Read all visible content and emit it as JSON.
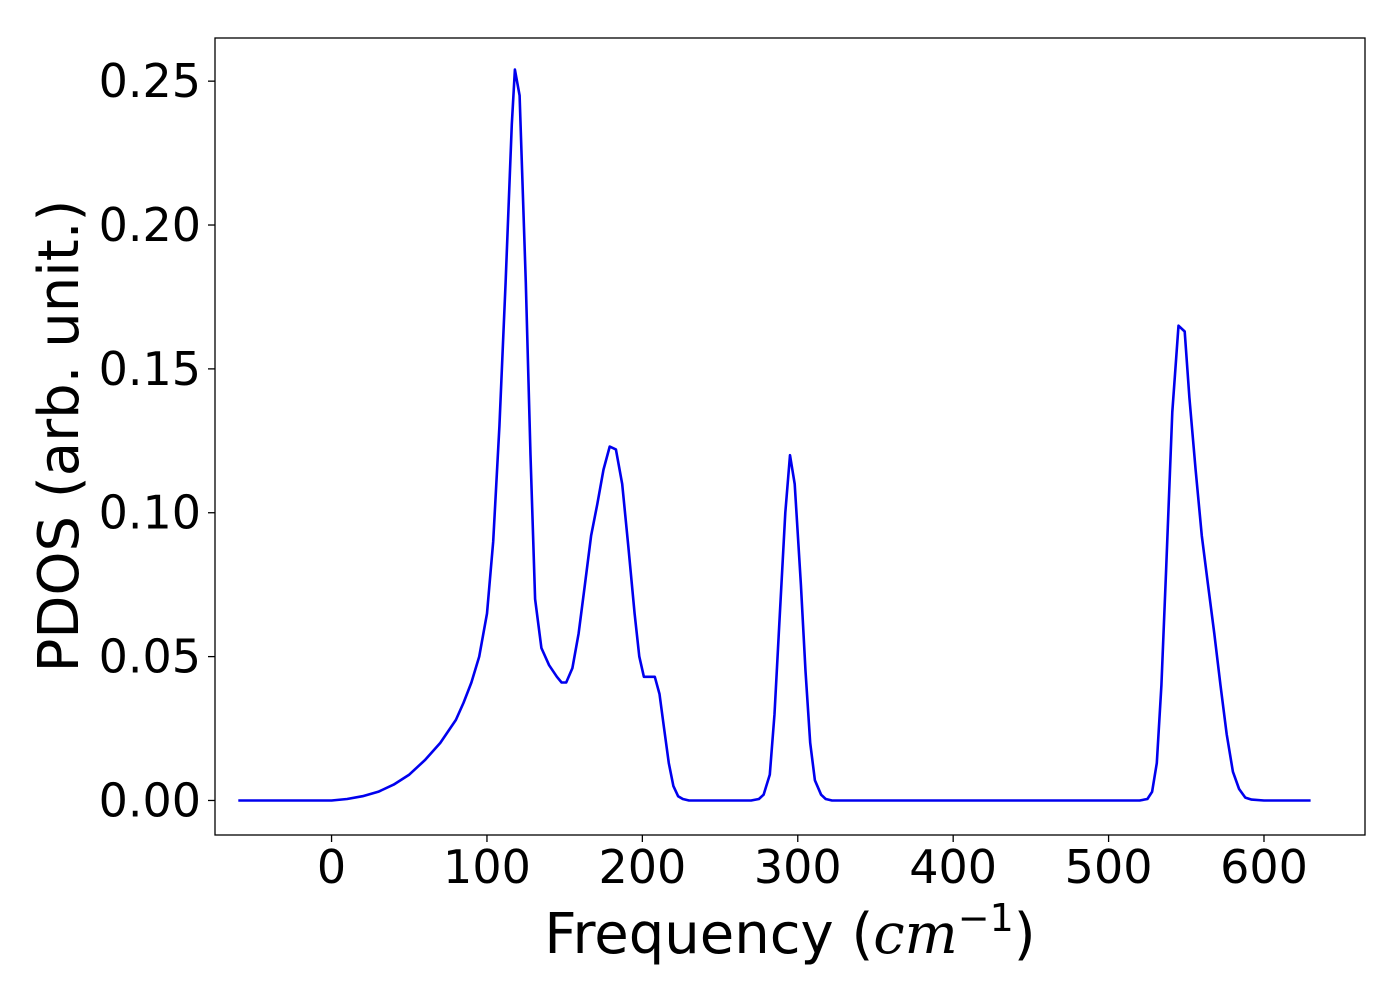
{
  "chart_data": {
    "type": "line",
    "title": "",
    "xlabel_prefix": "Frequency (",
    "xlabel_unit": "cm",
    "xlabel_exp": "−1",
    "xlabel_suffix": ")",
    "ylabel": "PDOS (arb. unit.)",
    "xlim": [
      -75,
      665
    ],
    "ylim": [
      -0.012,
      0.265
    ],
    "xticks": [
      0,
      100,
      200,
      300,
      400,
      500,
      600
    ],
    "xtick_labels": [
      "0",
      "100",
      "200",
      "300",
      "400",
      "500",
      "600"
    ],
    "yticks": [
      0.0,
      0.05,
      0.1,
      0.15,
      0.2,
      0.25
    ],
    "ytick_labels": [
      "0.00",
      "0.05",
      "0.10",
      "0.15",
      "0.20",
      "0.25"
    ],
    "grid": false,
    "legend": "none",
    "series": [
      {
        "color": "#0000ee",
        "x": [
          -60,
          -40,
          -20,
          0,
          10,
          20,
          30,
          40,
          50,
          60,
          70,
          80,
          85,
          90,
          95,
          100,
          104,
          108,
          112,
          116,
          118,
          121,
          125,
          128,
          131,
          135,
          140,
          145,
          148,
          151,
          155,
          159,
          163,
          167,
          171,
          175,
          179,
          183,
          187,
          191,
          195,
          198,
          201,
          205,
          208,
          211,
          214,
          217,
          220,
          223,
          226,
          230,
          240,
          260,
          270,
          275,
          278,
          282,
          285,
          288,
          292,
          295,
          298,
          302,
          305,
          308,
          311,
          315,
          318,
          322,
          330,
          400,
          500,
          520,
          525,
          528,
          531,
          534,
          537,
          541,
          545,
          549,
          552,
          556,
          560,
          564,
          568,
          572,
          576,
          580,
          584,
          588,
          592,
          600,
          630
        ],
        "y": [
          0.0,
          0.0,
          0.0,
          0.0,
          0.0005,
          0.0015,
          0.003,
          0.0055,
          0.009,
          0.014,
          0.02,
          0.028,
          0.034,
          0.041,
          0.05,
          0.065,
          0.09,
          0.13,
          0.18,
          0.235,
          0.254,
          0.245,
          0.18,
          0.12,
          0.07,
          0.053,
          0.047,
          0.043,
          0.041,
          0.041,
          0.046,
          0.058,
          0.075,
          0.092,
          0.103,
          0.115,
          0.123,
          0.122,
          0.11,
          0.088,
          0.065,
          0.05,
          0.043,
          0.043,
          0.043,
          0.037,
          0.025,
          0.013,
          0.005,
          0.0015,
          0.0005,
          0.0,
          0.0,
          0.0,
          0.0,
          0.0005,
          0.002,
          0.009,
          0.03,
          0.06,
          0.1,
          0.12,
          0.11,
          0.075,
          0.045,
          0.02,
          0.007,
          0.002,
          0.0005,
          0.0,
          0.0,
          0.0,
          0.0,
          0.0,
          0.0005,
          0.003,
          0.013,
          0.04,
          0.08,
          0.135,
          0.165,
          0.163,
          0.14,
          0.115,
          0.092,
          0.075,
          0.058,
          0.04,
          0.023,
          0.01,
          0.004,
          0.001,
          0.0003,
          0.0,
          0.0
        ]
      }
    ]
  }
}
